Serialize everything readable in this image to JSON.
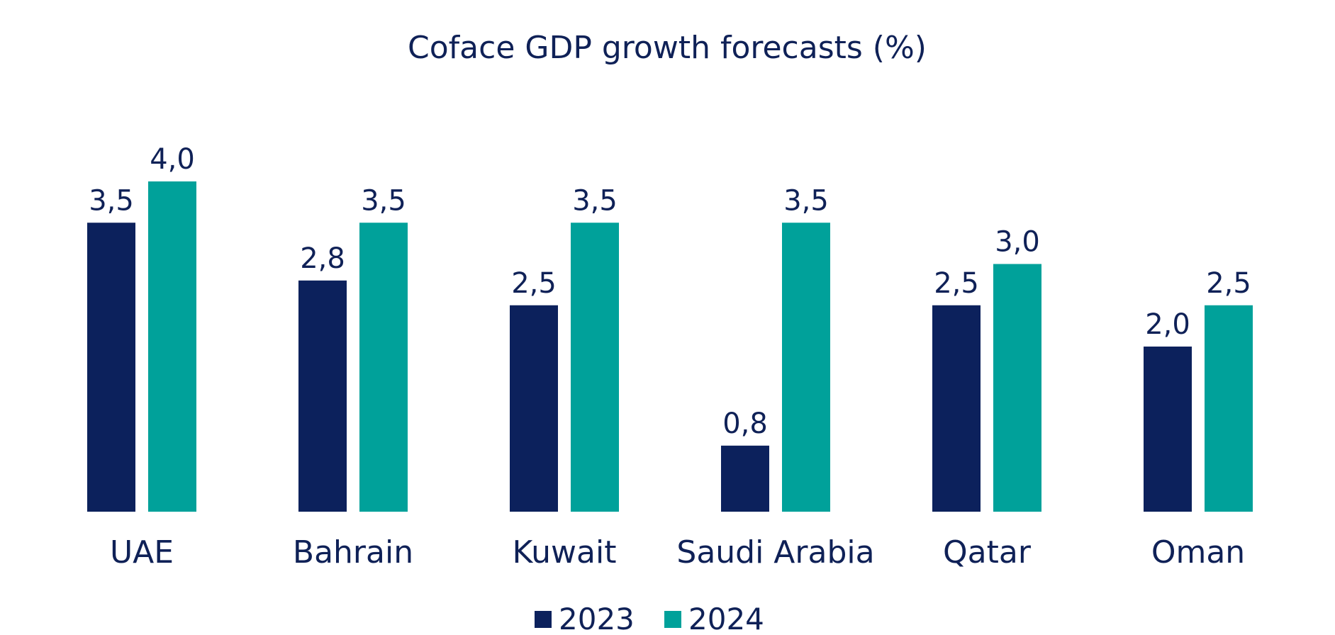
{
  "chart_data": {
    "type": "bar",
    "title": "Coface GDP growth forecasts (%)",
    "categories": [
      "UAE",
      "Bahrain",
      "Kuwait",
      "Saudi Arabia",
      "Qatar",
      "Oman"
    ],
    "series": [
      {
        "name": "2023",
        "color": "#0c215c",
        "values": [
          3.5,
          2.8,
          2.5,
          0.8,
          2.5,
          2.0
        ],
        "labels": [
          "3,5",
          "2,8",
          "2,5",
          "0,8",
          "2,5",
          "2,0"
        ]
      },
      {
        "name": "2024",
        "color": "#00a19a",
        "values": [
          4.0,
          3.5,
          3.5,
          3.5,
          3.0,
          2.5
        ],
        "labels": [
          "4,0",
          "3,5",
          "3,5",
          "3,5",
          "3,0",
          "2,5"
        ]
      }
    ],
    "ylim": [
      0,
      4.0
    ],
    "grid": false,
    "legend_position": "bottom-center"
  }
}
